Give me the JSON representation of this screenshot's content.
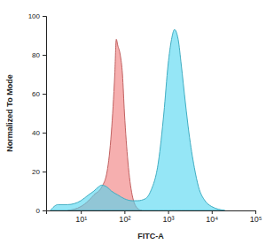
{
  "chart_data": {
    "type": "area",
    "log": "x",
    "grid": false,
    "x_label": "FITC-A",
    "y_label": "Normalized To Mode",
    "xlim": [
      1.6,
      100000
    ],
    "xticks": [
      {
        "value": 10,
        "label": "10¹"
      },
      {
        "value": 100,
        "label": "10²"
      },
      {
        "value": 1000,
        "label": "10³"
      },
      {
        "value": 10000,
        "label": "10⁴"
      },
      {
        "value": 100000,
        "label": "10⁵"
      }
    ],
    "ylim": [
      0,
      100
    ],
    "yticks": [
      0,
      20,
      40,
      60,
      80,
      100
    ],
    "series": [
      {
        "color": "#f07a7a",
        "x": [
          5,
          10,
          15,
          20,
          30,
          40,
          50,
          60,
          65,
          70,
          80,
          90,
          100,
          120,
          150,
          200,
          250
        ],
        "values": [
          0,
          2,
          5,
          8,
          12,
          20,
          40,
          70,
          88,
          85,
          80,
          70,
          50,
          25,
          8,
          1,
          0
        ]
      },
      {
        "color": "#4fd6f0",
        "x": [
          2,
          3,
          5,
          10,
          15,
          20,
          25,
          30,
          40,
          50,
          70,
          100,
          150,
          200,
          300,
          400,
          600,
          800,
          1000,
          1200,
          1400,
          1700,
          2000,
          2500,
          3000,
          4000,
          5000,
          7000,
          10000,
          20000
        ],
        "values": [
          0,
          3,
          3,
          5,
          8,
          10,
          12,
          13,
          12,
          10,
          8,
          6,
          5,
          5,
          6,
          10,
          25,
          50,
          75,
          88,
          93,
          88,
          75,
          55,
          40,
          22,
          12,
          5,
          2,
          0
        ]
      }
    ]
  }
}
